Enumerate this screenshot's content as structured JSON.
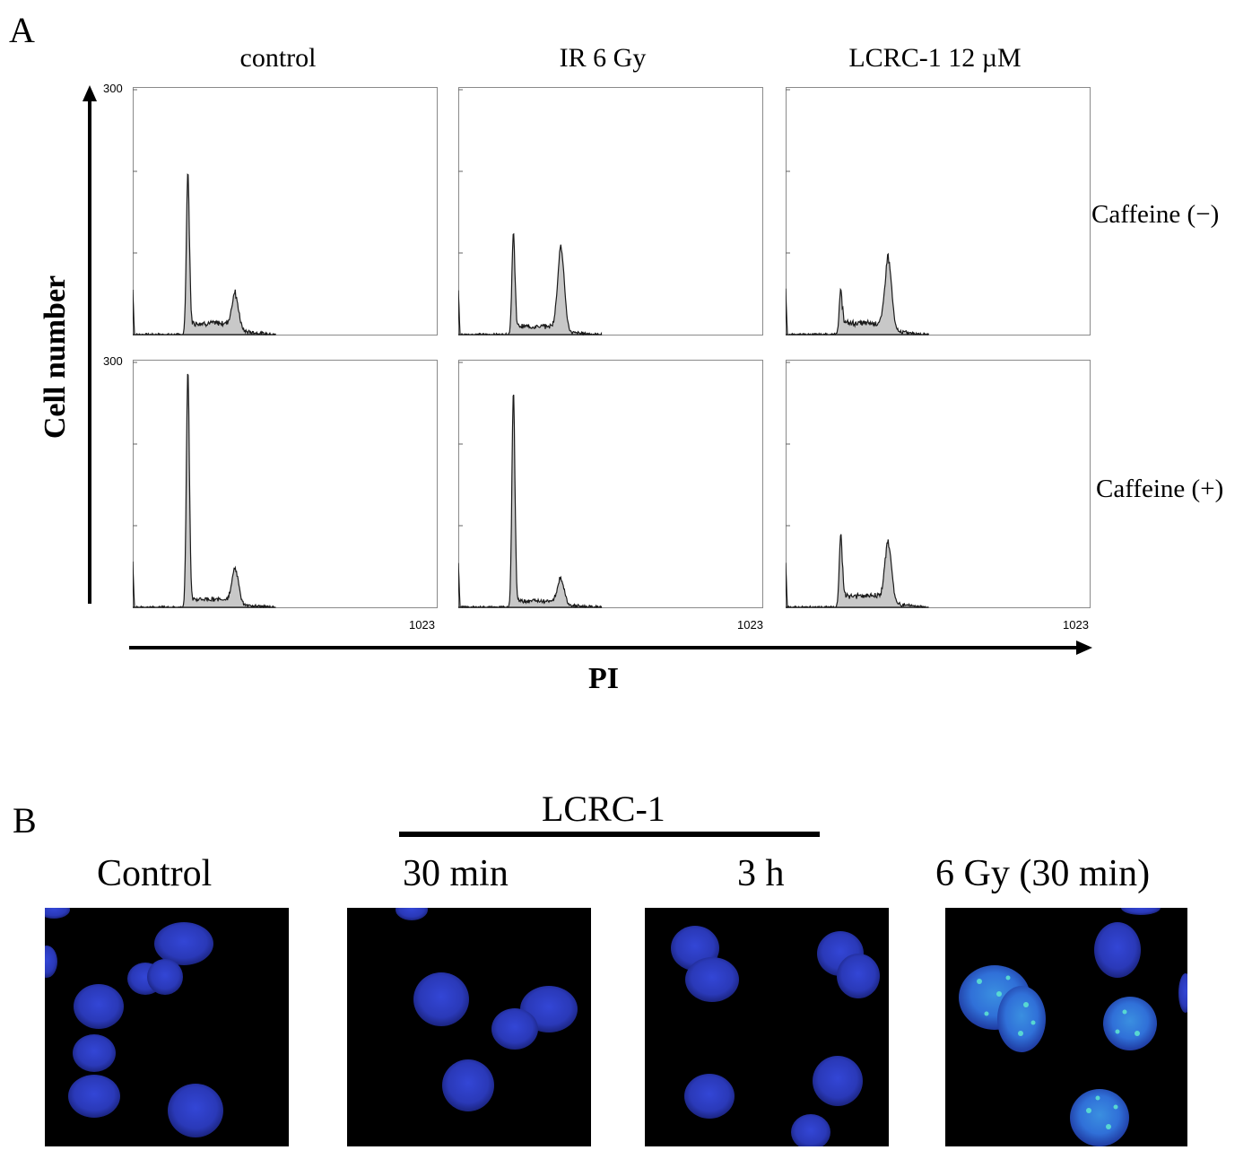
{
  "panel_a": {
    "letter": "A",
    "columns": [
      "control",
      "IR 6 Gy",
      "LCRC-1 12 µM"
    ],
    "rows": [
      "Caffeine (−)",
      "Caffeine (+)"
    ],
    "ylabel": "Cell number",
    "xlabel": "PI",
    "y_max_label": "300",
    "x_max_label": "1023"
  },
  "chart_data": {
    "type": "area",
    "xlabel": "PI",
    "ylabel": "Cell number",
    "xlim": [
      0,
      1023
    ],
    "ylim": [
      0,
      300
    ],
    "grid": false,
    "fill_color": "#c8c8c8",
    "line_color": "#1a1a1a",
    "panels": [
      {
        "column": "control",
        "row": "Caffeine (−)",
        "g1": {
          "x": 185,
          "y": 200
        },
        "g2": {
          "x": 345,
          "y": 40
        },
        "s_phase_level": 14
      },
      {
        "column": "IR 6 Gy",
        "row": "Caffeine (−)",
        "g1": {
          "x": 185,
          "y": 125
        },
        "g2": {
          "x": 345,
          "y": 100
        },
        "s_phase_level": 10
      },
      {
        "column": "LCRC-1 12 µM",
        "row": "Caffeine (−)",
        "g1": {
          "x": 185,
          "y": 55
        },
        "g2": {
          "x": 345,
          "y": 85
        },
        "s_phase_level": 14
      },
      {
        "column": "control",
        "row": "Caffeine (+)",
        "g1": {
          "x": 185,
          "y": 290
        },
        "g2": {
          "x": 345,
          "y": 40
        },
        "s_phase_level": 10
      },
      {
        "column": "IR 6 Gy",
        "row": "Caffeine (+)",
        "g1": {
          "x": 185,
          "y": 265
        },
        "g2": {
          "x": 345,
          "y": 30
        },
        "s_phase_level": 8
      },
      {
        "column": "LCRC-1 12 µM",
        "row": "Caffeine (+)",
        "g1": {
          "x": 185,
          "y": 90
        },
        "g2": {
          "x": 345,
          "y": 70
        },
        "s_phase_level": 14
      }
    ]
  },
  "panel_b": {
    "letter": "B",
    "group_label": "LCRC-1",
    "titles": [
      "Control",
      "30 min",
      "3 h",
      "6 Gy (30 min)"
    ],
    "nucleus_color": "#2b3cc8",
    "gamma_h2ax_color": "#3fd6c8"
  }
}
